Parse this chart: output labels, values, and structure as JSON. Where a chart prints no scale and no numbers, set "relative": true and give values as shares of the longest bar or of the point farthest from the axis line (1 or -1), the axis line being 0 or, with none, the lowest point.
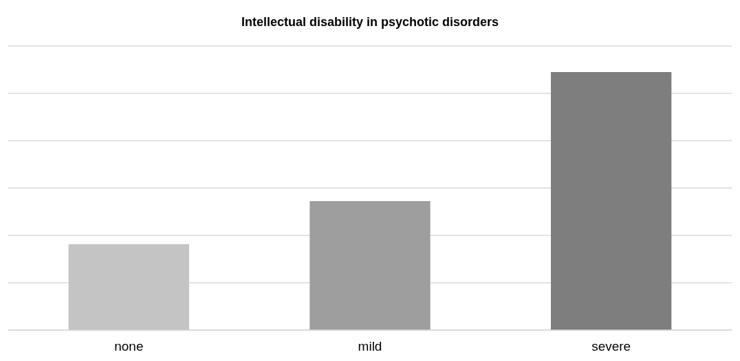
{
  "chart_data": {
    "type": "bar",
    "title": "Intellectual disability in psychotic disorders",
    "categories": [
      "none",
      "mild",
      "severe"
    ],
    "values": [
      0.333,
      0.5,
      1
    ],
    "colors": [
      "#c4c4c4",
      "#9e9e9e",
      "#7e7e7e"
    ],
    "relative": true,
    "grid": true
  }
}
